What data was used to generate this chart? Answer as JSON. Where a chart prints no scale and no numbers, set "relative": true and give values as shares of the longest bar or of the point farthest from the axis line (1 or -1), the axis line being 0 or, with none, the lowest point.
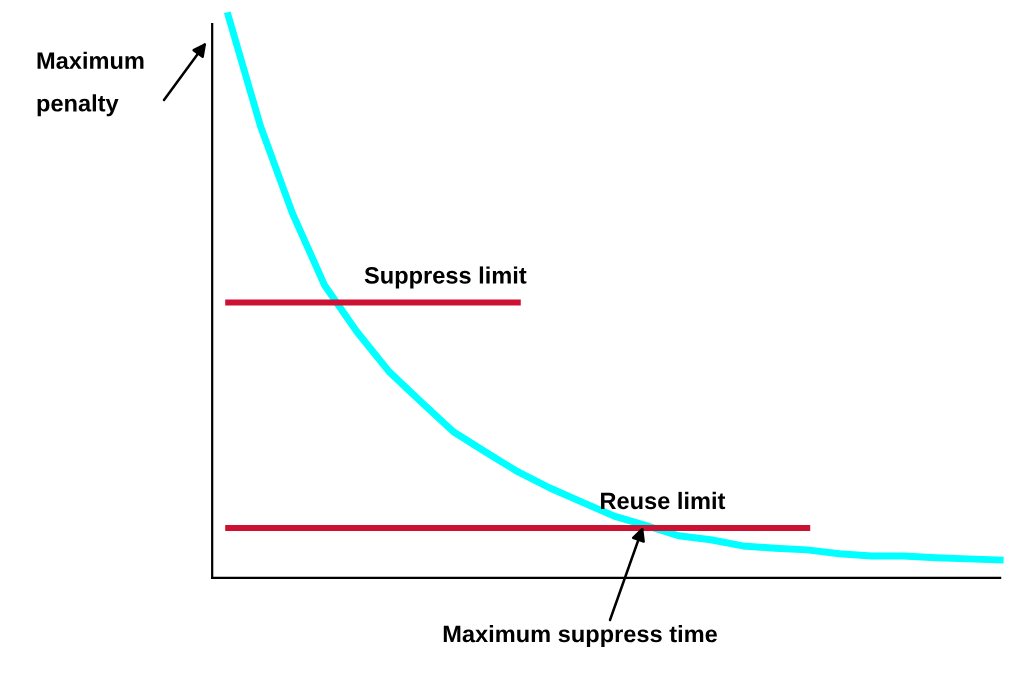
{
  "chart_data": {
    "type": "line",
    "relative": true,
    "categories": [
      null,
      null,
      null,
      null,
      null,
      null,
      null,
      null,
      null,
      null,
      null,
      null,
      null,
      null,
      null,
      null,
      null,
      null,
      null,
      null,
      null,
      null,
      null,
      null,
      null
    ],
    "series": [
      {
        "color": "#00ffff",
        "values": [
          1.0,
          0.804,
          0.648,
          0.52,
          0.438,
          0.367,
          0.313,
          0.26,
          0.224,
          0.189,
          0.16,
          0.135,
          0.11,
          0.093,
          0.075,
          0.068,
          0.057,
          0.053,
          0.05,
          0.043,
          0.039,
          0.039,
          0.036,
          0.034,
          0.032
        ]
      },
      {
        "name": "Suppress limit",
        "color": "#cc1133",
        "values": [
          0.49,
          0.49,
          0.49,
          0.49,
          0.49,
          0.49,
          0.49,
          0.49,
          0.49,
          0.49,
          null,
          null,
          null,
          null,
          null,
          null,
          null,
          null,
          null,
          null,
          null,
          null,
          null,
          null,
          null
        ]
      },
      {
        "name": "Reuse limit",
        "color": "#cc1133",
        "values": [
          0.089,
          0.089,
          0.089,
          0.089,
          0.089,
          0.089,
          0.089,
          0.089,
          0.089,
          0.089,
          0.089,
          0.089,
          0.089,
          0.089,
          0.089,
          0.089,
          0.089,
          0.089,
          0.089,
          null,
          null,
          null,
          null,
          null,
          null
        ]
      }
    ],
    "annotations": [
      "Maximum penalty",
      "Maximum suppress time"
    ],
    "marker": "none",
    "line_style": "solid"
  }
}
